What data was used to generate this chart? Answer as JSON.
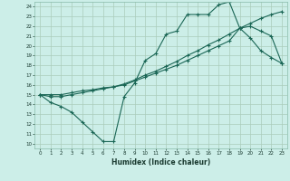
{
  "title": "",
  "xlabel": "Humidex (Indice chaleur)",
  "bg_color": "#cceee8",
  "grid_color": "#aaccbb",
  "line_color": "#1a6655",
  "xlim": [
    -0.5,
    23.5
  ],
  "ylim": [
    9.5,
    24.5
  ],
  "xticks": [
    0,
    1,
    2,
    3,
    4,
    5,
    6,
    7,
    8,
    9,
    10,
    11,
    12,
    13,
    14,
    15,
    16,
    17,
    18,
    19,
    20,
    21,
    22,
    23
  ],
  "yticks": [
    10,
    11,
    12,
    13,
    14,
    15,
    16,
    17,
    18,
    19,
    20,
    21,
    22,
    23,
    24
  ],
  "series1_x": [
    0,
    1,
    2,
    3,
    4,
    5,
    6,
    7,
    8,
    9,
    10,
    11,
    12,
    13,
    14,
    15,
    16,
    17,
    18,
    19,
    20,
    21,
    22,
    23
  ],
  "series1_y": [
    15,
    14.2,
    13.8,
    13.2,
    12.2,
    11.2,
    10.2,
    10.2,
    14.8,
    16.2,
    18.5,
    19.2,
    21.2,
    21.5,
    23.2,
    23.2,
    23.2,
    24.2,
    24.5,
    21.8,
    20.8,
    19.5,
    18.8,
    18.2
  ],
  "series2_x": [
    0,
    1,
    2,
    3,
    4,
    5,
    6,
    7,
    8,
    9,
    10,
    11,
    12,
    13,
    14,
    15,
    16,
    17,
    18,
    19,
    20,
    21,
    22,
    23
  ],
  "series2_y": [
    15,
    15.0,
    15.0,
    15.2,
    15.4,
    15.5,
    15.7,
    15.8,
    16.0,
    16.4,
    16.8,
    17.2,
    17.6,
    18.0,
    18.5,
    19.0,
    19.5,
    20.0,
    20.5,
    21.8,
    22.0,
    21.5,
    21.0,
    18.2
  ],
  "series3_x": [
    0,
    1,
    2,
    3,
    4,
    5,
    6,
    7,
    8,
    9,
    10,
    11,
    12,
    13,
    14,
    15,
    16,
    17,
    18,
    19,
    20,
    21,
    22,
    23
  ],
  "series3_y": [
    15,
    14.8,
    14.8,
    15.0,
    15.2,
    15.4,
    15.6,
    15.8,
    16.1,
    16.5,
    17.0,
    17.4,
    17.9,
    18.4,
    19.0,
    19.5,
    20.1,
    20.6,
    21.2,
    21.8,
    22.3,
    22.8,
    23.2,
    23.5
  ]
}
